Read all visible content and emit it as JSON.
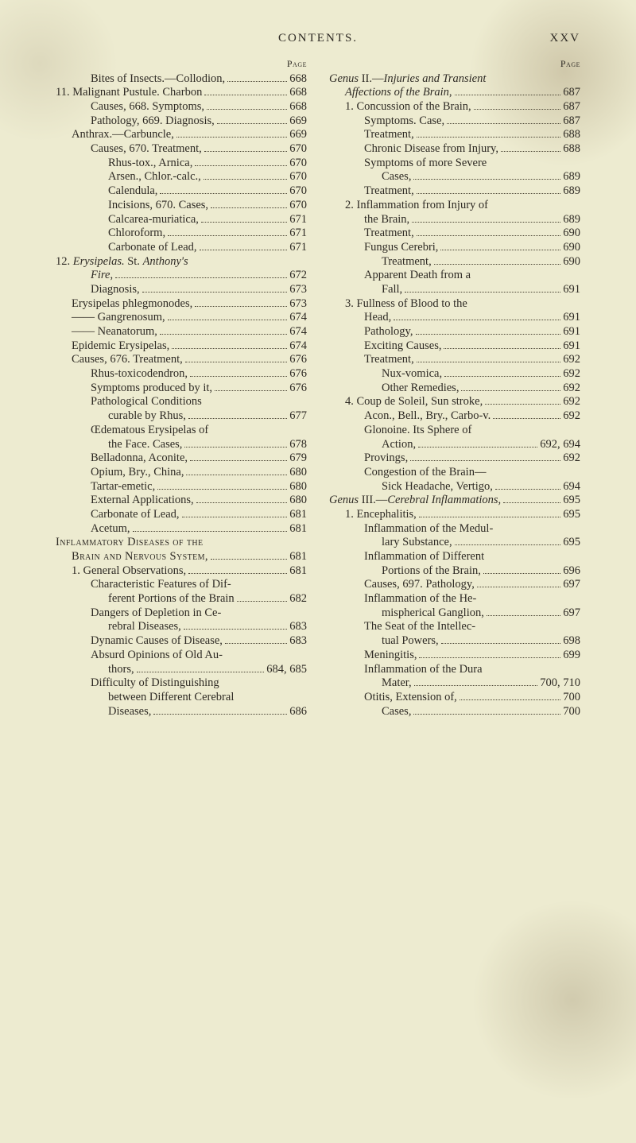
{
  "runningHead": {
    "center": "CONTENTS.",
    "folio": "XXV"
  },
  "pageLabel": "Page",
  "left": [
    {
      "t": "Bites of Insects.—Collodion,",
      "p": "668",
      "i": 2
    },
    {
      "t": "11. Malignant Pustule.  Charbon",
      "p": "668",
      "i": 0
    },
    {
      "t": "Causes, 668.  Symptoms,",
      "p": "668",
      "i": 2
    },
    {
      "t": "Pathology, 669. Diagnosis,",
      "p": "669",
      "i": 2
    },
    {
      "t": "Anthrax.—Carbuncle,",
      "p": "669",
      "i": 1
    },
    {
      "t": "Causes, 670.  Treatment,",
      "p": "670",
      "i": 2
    },
    {
      "t": "Rhus-tox., Arnica,",
      "p": "670",
      "i": 3
    },
    {
      "t": "Arsen., Chlor.-calc.,",
      "p": "670",
      "i": 3
    },
    {
      "t": "Calendula,",
      "p": "670",
      "i": 3
    },
    {
      "t": "Incisions, 670.  Cases,",
      "p": "670",
      "i": 3
    },
    {
      "t": "Calcarea-muriatica,",
      "p": "671",
      "i": 3
    },
    {
      "t": "Chloroform,",
      "p": "671",
      "i": 3
    },
    {
      "t": "Carbonate of Lead,",
      "p": "671",
      "i": 3
    },
    {
      "t": "12. <span class=\"italic\">Erysipelas.</span>  St. <span class=\"italic\">Anthony's</span>",
      "p": "",
      "i": 0,
      "noDots": true
    },
    {
      "t": "<span class=\"italic\">Fire</span>,",
      "p": "672",
      "i": 2
    },
    {
      "t": "Diagnosis,",
      "p": "673",
      "i": 2
    },
    {
      "t": "Erysipelas phlegmonodes,",
      "p": "673",
      "i": 1
    },
    {
      "t": "—— Gangrenosum,",
      "p": "674",
      "i": 1
    },
    {
      "t": "—— Neanatorum,",
      "p": "674",
      "i": 1
    },
    {
      "t": "Epidemic Erysipelas,",
      "p": "674",
      "i": 1
    },
    {
      "t": "Causes, 676.  Treatment,",
      "p": "676",
      "i": 1
    },
    {
      "t": "Rhus-toxicodendron,",
      "p": "676",
      "i": 2
    },
    {
      "t": "Symptoms produced by it,",
      "p": "676",
      "i": 2
    },
    {
      "t": "Pathological  Conditions",
      "p": "",
      "i": 2,
      "noDots": true
    },
    {
      "t": "curable by Rhus,",
      "p": "677",
      "i": 3
    },
    {
      "t": "Œdematous Erysipelas of",
      "p": "",
      "i": 2,
      "noDots": true
    },
    {
      "t": "the Face.  Cases,",
      "p": "678",
      "i": 3
    },
    {
      "t": "Belladonna, Aconite,",
      "p": "679",
      "i": 2
    },
    {
      "t": "Opium, Bry., China,",
      "p": "680",
      "i": 2
    },
    {
      "t": "Tartar-emetic,",
      "p": "680",
      "i": 2
    },
    {
      "t": "External Applications,",
      "p": "680",
      "i": 2
    },
    {
      "t": "Carbonate of Lead,",
      "p": "681",
      "i": 2
    },
    {
      "t": "Acetum,",
      "p": "681",
      "i": 2
    },
    {
      "t": "<span class=\"smcaps\">Inflammatory Diseases of the</span>",
      "p": "",
      "i": 0,
      "noDots": true
    },
    {
      "t": "<span class=\"smcaps\">Brain and Nervous System,</span>",
      "p": "681",
      "i": 1
    },
    {
      "t": "1. General Observations,",
      "p": "681",
      "i": 1
    },
    {
      "t": "Characteristic Features of Dif-",
      "p": "",
      "i": 2,
      "noDots": true
    },
    {
      "t": "ferent Portions of the Brain",
      "p": "682",
      "i": 3
    },
    {
      "t": "Dangers of Depletion in Ce-",
      "p": "",
      "i": 2,
      "noDots": true
    },
    {
      "t": "rebral Diseases,",
      "p": "683",
      "i": 3
    },
    {
      "t": "Dynamic Causes of Disease,",
      "p": "683",
      "i": 2
    },
    {
      "t": "Absurd Opinions of Old Au-",
      "p": "",
      "i": 2,
      "noDots": true
    },
    {
      "t": "thors,",
      "p": "684, 685",
      "i": 3
    },
    {
      "t": "Difficulty of Distinguishing",
      "p": "",
      "i": 2,
      "noDots": true
    },
    {
      "t": "between Different Cerebral",
      "p": "",
      "i": 3,
      "noDots": true
    },
    {
      "t": "Diseases,",
      "p": "686",
      "i": 3
    }
  ],
  "right": [
    {
      "t": "<span class=\"italic\">Genus</span> II.—<span class=\"italic\">Injuries and Transient</span>",
      "p": "",
      "i": 0,
      "noDots": true
    },
    {
      "t": "<span class=\"italic\">Affections of the Brain</span>,",
      "p": "687",
      "i": 1
    },
    {
      "t": "1. Concussion of the Brain,",
      "p": "687",
      "i": 1
    },
    {
      "t": "Symptoms.  Case,",
      "p": "687",
      "i": 2
    },
    {
      "t": "Treatment,",
      "p": "688",
      "i": 2
    },
    {
      "t": "Chronic Disease from Injury,",
      "p": "688",
      "i": 2
    },
    {
      "t": "Symptoms of more Severe",
      "p": "",
      "i": 2,
      "noDots": true
    },
    {
      "t": "Cases,",
      "p": "689",
      "i": 3
    },
    {
      "t": "Treatment,",
      "p": "689",
      "i": 2
    },
    {
      "t": "2. Inflammation from Injury of",
      "p": "",
      "i": 1,
      "noDots": true
    },
    {
      "t": "the Brain,",
      "p": "689",
      "i": 2
    },
    {
      "t": "Treatment,",
      "p": "690",
      "i": 2
    },
    {
      "t": "Fungus Cerebri,",
      "p": "690",
      "i": 2
    },
    {
      "t": "Treatment,",
      "p": "690",
      "i": 3
    },
    {
      "t": "Apparent Death from a",
      "p": "",
      "i": 2,
      "noDots": true
    },
    {
      "t": "Fall,",
      "p": "691",
      "i": 3
    },
    {
      "t": "3. Fullness of Blood to the",
      "p": "",
      "i": 1,
      "noDots": true
    },
    {
      "t": "Head,",
      "p": "691",
      "i": 2
    },
    {
      "t": "Pathology,",
      "p": "691",
      "i": 2
    },
    {
      "t": "Exciting Causes,",
      "p": "691",
      "i": 2
    },
    {
      "t": "Treatment,",
      "p": "692",
      "i": 2
    },
    {
      "t": "Nux-vomica,",
      "p": "692",
      "i": 3
    },
    {
      "t": "Other Remedies,",
      "p": "692",
      "i": 3
    },
    {
      "t": "4. Coup de Soleil, Sun stroke,",
      "p": "692",
      "i": 1
    },
    {
      "t": "Acon., Bell., Bry., Carbo-v.",
      "p": "692",
      "i": 2
    },
    {
      "t": "Glonoine.  Its Sphere of",
      "p": "",
      "i": 2,
      "noDots": true
    },
    {
      "t": "Action,",
      "p": "692, 694",
      "i": 3
    },
    {
      "t": "Provings,",
      "p": "692",
      "i": 2
    },
    {
      "t": "Congestion of the Brain—",
      "p": "",
      "i": 2,
      "noDots": true
    },
    {
      "t": "Sick Headache, Vertigo,",
      "p": "694",
      "i": 3
    },
    {
      "t": "<span class=\"italic\">Genus</span> III.—<span class=\"italic\">Cerebral Inflammations,</span>",
      "p": "695",
      "i": 0
    },
    {
      "t": "1. Encephalitis,",
      "p": "695",
      "i": 1
    },
    {
      "t": "Inflammation of the Medul-",
      "p": "",
      "i": 2,
      "noDots": true
    },
    {
      "t": "lary Substance,",
      "p": "695",
      "i": 3
    },
    {
      "t": "Inflammation of Different",
      "p": "",
      "i": 2,
      "noDots": true
    },
    {
      "t": "Portions of the Brain,",
      "p": "696",
      "i": 3
    },
    {
      "t": "Causes, 697.  Pathology,",
      "p": "697",
      "i": 2
    },
    {
      "t": "Inflammation of the He-",
      "p": "",
      "i": 2,
      "noDots": true
    },
    {
      "t": "mispherical Ganglion,",
      "p": "697",
      "i": 3
    },
    {
      "t": "The Seat of the Intellec-",
      "p": "",
      "i": 2,
      "noDots": true
    },
    {
      "t": "tual Powers,",
      "p": "698",
      "i": 3
    },
    {
      "t": "Meningitis,",
      "p": "699",
      "i": 2
    },
    {
      "t": "Inflammation of the Dura",
      "p": "",
      "i": 2,
      "noDots": true
    },
    {
      "t": "Mater,",
      "p": "700, 710",
      "i": 3
    },
    {
      "t": "Otitis, Extension of,",
      "p": "700",
      "i": 2
    },
    {
      "t": "Cases,",
      "p": "700",
      "i": 3
    }
  ]
}
